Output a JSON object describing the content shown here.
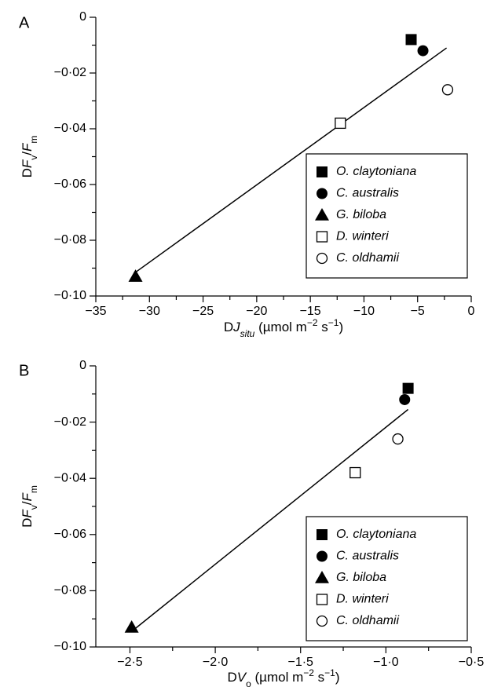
{
  "chart_data": [
    {
      "panel": "A",
      "type": "scatter",
      "ylabel": "DF_v/F_m",
      "xlabel": "DJ_situ (µmol m⁻² s⁻¹)",
      "ylabel_parts": [
        {
          "t": "D",
          "i": false,
          "sub": false
        },
        {
          "t": "F",
          "i": true,
          "sub": false
        },
        {
          "t": "v",
          "i": false,
          "sub": true
        },
        {
          "t": "/",
          "i": false,
          "sub": false
        },
        {
          "t": "F",
          "i": true,
          "sub": false
        },
        {
          "t": "m",
          "i": false,
          "sub": true
        }
      ],
      "xlabel_parts": [
        {
          "t": "D",
          "i": false,
          "sup": false,
          "sub": false
        },
        {
          "t": "J",
          "i": true,
          "sup": false,
          "sub": false
        },
        {
          "t": "situ",
          "i": true,
          "sup": false,
          "sub": true
        },
        {
          "t": " (µmol m",
          "i": false,
          "sup": false,
          "sub": false
        },
        {
          "t": "−2",
          "i": false,
          "sup": true,
          "sub": false
        },
        {
          "t": " s",
          "i": false,
          "sup": false,
          "sub": false
        },
        {
          "t": "−1",
          "i": false,
          "sup": true,
          "sub": false
        },
        {
          "t": ")",
          "i": false,
          "sup": false,
          "sub": false
        }
      ],
      "xlim": [
        -35,
        0
      ],
      "ylim": [
        -0.1,
        0
      ],
      "xticks": [
        -35,
        -30,
        -25,
        -20,
        -15,
        -10,
        -5,
        0
      ],
      "xtick_labels": [
        "−35",
        "−30",
        "−25",
        "−20",
        "−15",
        "−10",
        "−5",
        "0"
      ],
      "yticks": [
        0,
        -0.02,
        -0.04,
        -0.06,
        -0.08,
        -0.1
      ],
      "ytick_labels": [
        "0",
        "−0·02",
        "−0·04",
        "−0·06",
        "−0·08",
        "−0·10"
      ],
      "series": [
        {
          "name": "O. claytoniana",
          "marker": "filled-square",
          "points": [
            [
              -5.6,
              -0.008
            ]
          ]
        },
        {
          "name": "C. australis",
          "marker": "filled-circle",
          "points": [
            [
              -4.5,
              -0.012
            ]
          ]
        },
        {
          "name": "G. biloba",
          "marker": "filled-triangle",
          "points": [
            [
              -31.3,
              -0.093
            ]
          ]
        },
        {
          "name": "D. winteri",
          "marker": "open-square",
          "points": [
            [
              -12.2,
              -0.038
            ]
          ]
        },
        {
          "name": "C. oldhamii",
          "marker": "open-circle",
          "points": [
            [
              -2.2,
              -0.026
            ]
          ]
        }
      ],
      "regression_line": [
        [
          -31.3,
          -0.0915
        ],
        [
          -2.3,
          -0.011
        ]
      ],
      "legend": {
        "position": "lower-right"
      }
    },
    {
      "panel": "B",
      "type": "scatter",
      "ylabel": "DF_v/F_m",
      "xlabel": "DV_o (µmol m⁻² s⁻¹)",
      "ylabel_parts": [
        {
          "t": "D",
          "i": false,
          "sub": false
        },
        {
          "t": "F",
          "i": true,
          "sub": false
        },
        {
          "t": "v",
          "i": false,
          "sub": true
        },
        {
          "t": "/",
          "i": false,
          "sub": false
        },
        {
          "t": "F",
          "i": true,
          "sub": false
        },
        {
          "t": "m",
          "i": false,
          "sub": true
        }
      ],
      "xlabel_parts": [
        {
          "t": "D",
          "i": false,
          "sup": false,
          "sub": false
        },
        {
          "t": "V",
          "i": true,
          "sup": false,
          "sub": false
        },
        {
          "t": "o",
          "i": false,
          "sup": false,
          "sub": true
        },
        {
          "t": " (µmol m",
          "i": false,
          "sup": false,
          "sub": false
        },
        {
          "t": "−2",
          "i": false,
          "sup": true,
          "sub": false
        },
        {
          "t": " s",
          "i": false,
          "sup": false,
          "sub": false
        },
        {
          "t": "−1",
          "i": false,
          "sup": true,
          "sub": false
        },
        {
          "t": ")",
          "i": false,
          "sup": false,
          "sub": false
        }
      ],
      "xlim": [
        -2.7,
        -0.5
      ],
      "ylim": [
        -0.1,
        0
      ],
      "xticks": [
        -2.5,
        -2.0,
        -1.5,
        -1.0,
        -0.5
      ],
      "xtick_labels": [
        "−2·5",
        "−2·0",
        "−1·5",
        "−1·0",
        "−0·5"
      ],
      "yticks": [
        0,
        -0.02,
        -0.04,
        -0.06,
        -0.08,
        -0.1
      ],
      "ytick_labels": [
        "0",
        "−0·02",
        "−0·04",
        "−0·06",
        "−0·08",
        "−0·10"
      ],
      "series": [
        {
          "name": "O. claytoniana",
          "marker": "filled-square",
          "points": [
            [
              -0.87,
              -0.008
            ]
          ]
        },
        {
          "name": "C. australis",
          "marker": "filled-circle",
          "points": [
            [
              -0.89,
              -0.012
            ]
          ]
        },
        {
          "name": "G. biloba",
          "marker": "filled-triangle",
          "points": [
            [
              -2.49,
              -0.093
            ]
          ]
        },
        {
          "name": "D. winteri",
          "marker": "open-square",
          "points": [
            [
              -1.18,
              -0.038
            ]
          ]
        },
        {
          "name": "C. oldhamii",
          "marker": "open-circle",
          "points": [
            [
              -0.93,
              -0.026
            ]
          ]
        }
      ],
      "regression_line": [
        [
          -2.47,
          -0.0935
        ],
        [
          -0.87,
          -0.0155
        ]
      ],
      "legend": {
        "position": "lower-right"
      }
    }
  ]
}
